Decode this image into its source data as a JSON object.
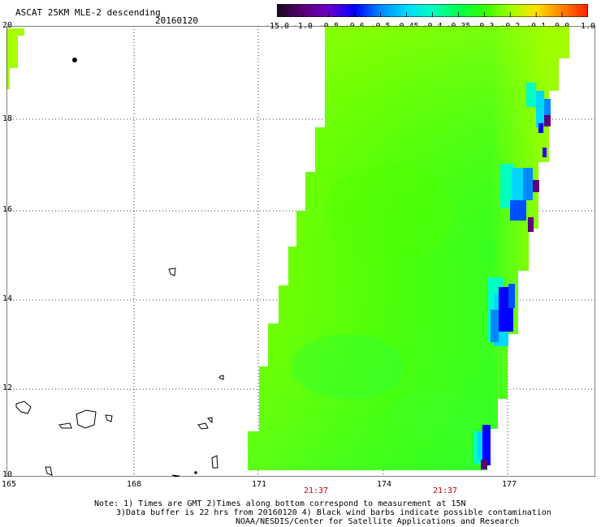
{
  "header": {
    "title": "ASCAT 25KM MLE-2 descending",
    "date": "20160120"
  },
  "colorbar": {
    "labels": [
      "-15.0",
      "-1.0",
      "-0.8",
      "-0.6",
      "-0.5",
      "-0.45",
      "-0.4",
      "-0.35",
      "-0.3",
      "-0.2",
      "-0.1",
      "0.0",
      "1.0"
    ],
    "colors": [
      "#1a0a1a",
      "#5a007a",
      "#6a00c8",
      "#0000ff",
      "#0088ff",
      "#00d8ff",
      "#00ffc0",
      "#00ff50",
      "#30ff00",
      "#a0ff00",
      "#ffe000",
      "#ff8000",
      "#ff2000"
    ]
  },
  "map": {
    "lon_ticks": [
      "165",
      "168",
      "171",
      "174",
      "177"
    ],
    "lat_ticks": [
      "20",
      "18",
      "16",
      "14",
      "12",
      "10"
    ],
    "times": [
      "21:37",
      "21:37"
    ]
  },
  "notes": {
    "line1": "Note: 1) Times are GMT 2)Times along bottom correspond to measurement at 15N",
    "line2": "3)Data buffer is 22 hrs from 20160120 4) Black wind barbs indicate possible contamination",
    "line3": "NOAA/NESDIS/Center for Satellite Applications and Research"
  }
}
